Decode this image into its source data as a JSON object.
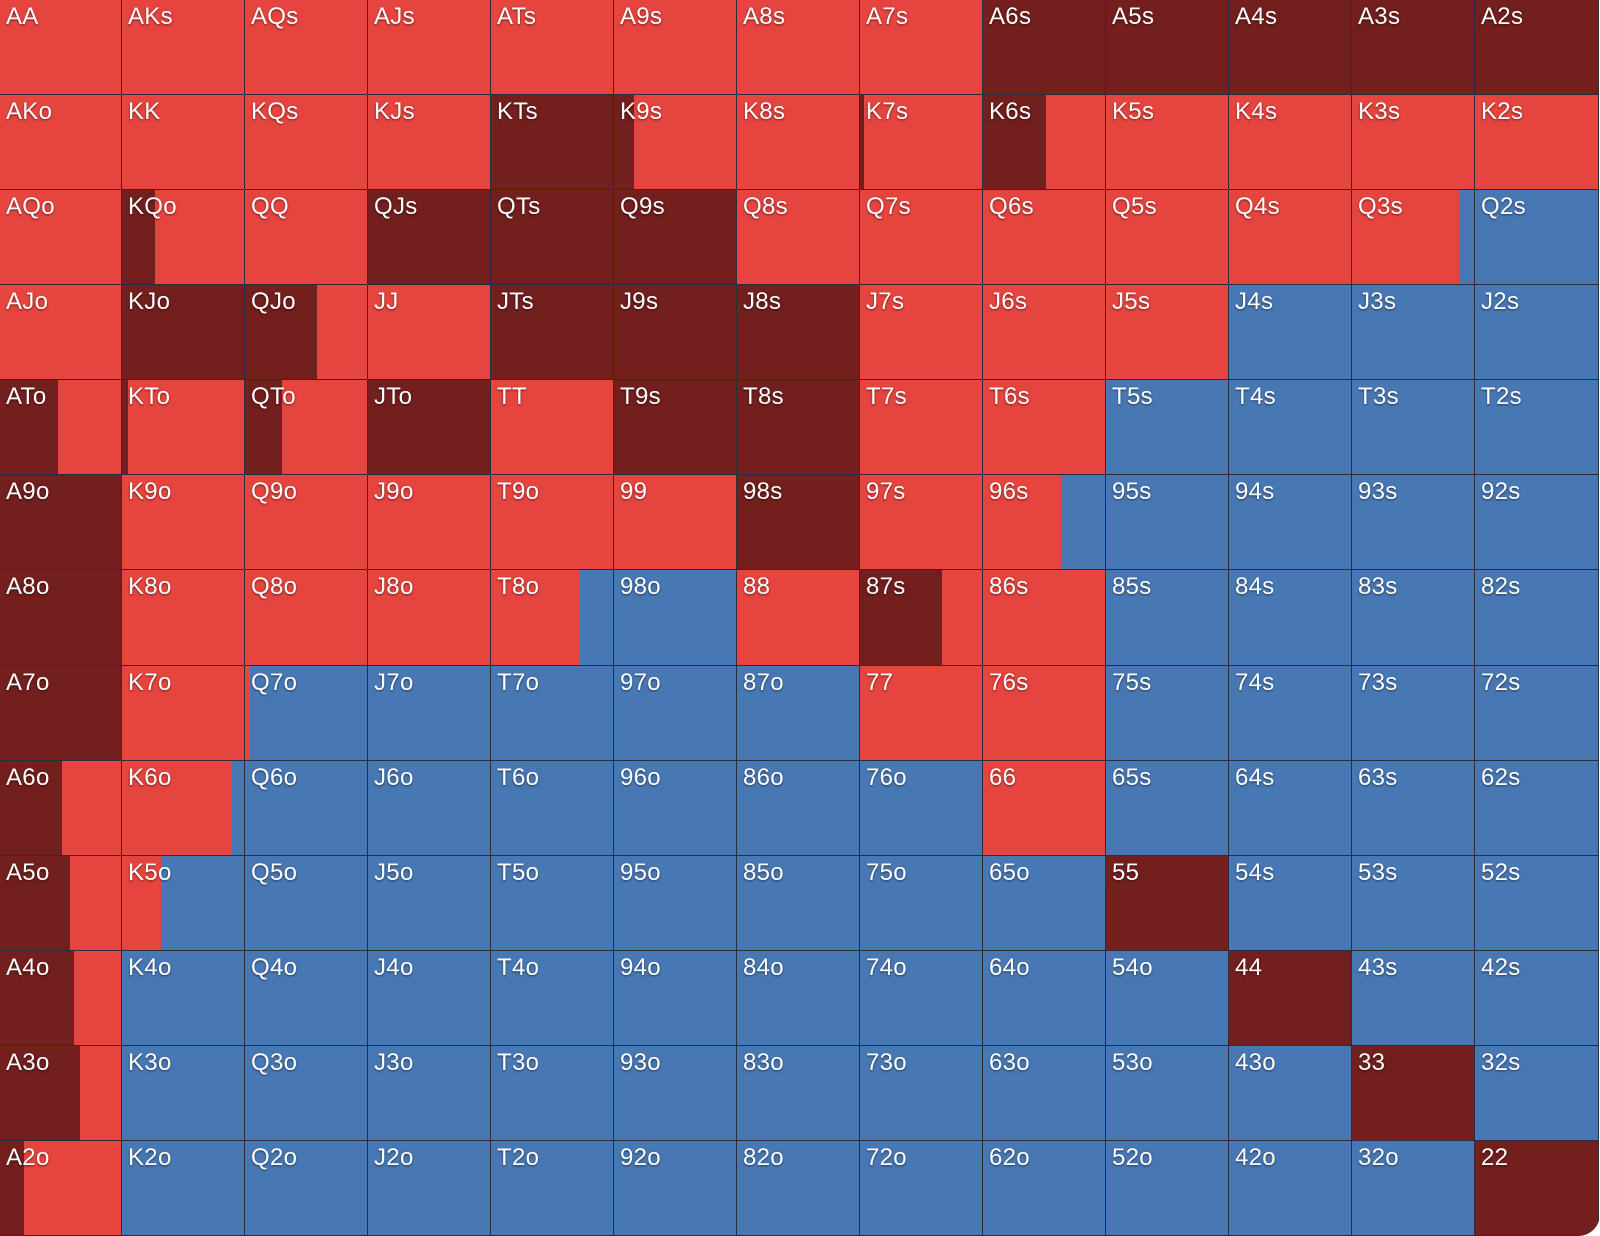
{
  "colors": {
    "raise": "#721f1e",
    "call": "#e6443e",
    "fold": "#4878b4"
  },
  "range_grid": {
    "rows": [
      [
        {
          "hand": "AA",
          "raise": 0,
          "call": 1
        },
        {
          "hand": "AKs",
          "raise": 0,
          "call": 1
        },
        {
          "hand": "AQs",
          "raise": 0,
          "call": 1
        },
        {
          "hand": "AJs",
          "raise": 0,
          "call": 1
        },
        {
          "hand": "ATs",
          "raise": 0,
          "call": 1
        },
        {
          "hand": "A9s",
          "raise": 0,
          "call": 1
        },
        {
          "hand": "A8s",
          "raise": 0,
          "call": 1
        },
        {
          "hand": "A7s",
          "raise": 0,
          "call": 1
        },
        {
          "hand": "A6s",
          "raise": 1,
          "call": 0
        },
        {
          "hand": "A5s",
          "raise": 1,
          "call": 0
        },
        {
          "hand": "A4s",
          "raise": 1,
          "call": 0
        },
        {
          "hand": "A3s",
          "raise": 1,
          "call": 0
        },
        {
          "hand": "A2s",
          "raise": 1,
          "call": 0
        }
      ],
      [
        {
          "hand": "AKo",
          "raise": 0,
          "call": 1
        },
        {
          "hand": "KK",
          "raise": 0,
          "call": 1
        },
        {
          "hand": "KQs",
          "raise": 0,
          "call": 1
        },
        {
          "hand": "KJs",
          "raise": 0,
          "call": 1
        },
        {
          "hand": "KTs",
          "raise": 1,
          "call": 0
        },
        {
          "hand": "K9s",
          "raise": 0.16,
          "call": 0.84
        },
        {
          "hand": "K8s",
          "raise": 0,
          "call": 1
        },
        {
          "hand": "K7s",
          "raise": 0.03,
          "call": 0.97
        },
        {
          "hand": "K6s",
          "raise": 0.52,
          "call": 0.48
        },
        {
          "hand": "K5s",
          "raise": 0,
          "call": 1
        },
        {
          "hand": "K4s",
          "raise": 0,
          "call": 1
        },
        {
          "hand": "K3s",
          "raise": 0,
          "call": 1
        },
        {
          "hand": "K2s",
          "raise": 0,
          "call": 1
        }
      ],
      [
        {
          "hand": "AQo",
          "raise": 0,
          "call": 1
        },
        {
          "hand": "KQo",
          "raise": 0.27,
          "call": 0.73
        },
        {
          "hand": "QQ",
          "raise": 0,
          "call": 1
        },
        {
          "hand": "QJs",
          "raise": 1,
          "call": 0
        },
        {
          "hand": "QTs",
          "raise": 1,
          "call": 0
        },
        {
          "hand": "Q9s",
          "raise": 1,
          "call": 0
        },
        {
          "hand": "Q8s",
          "raise": 0,
          "call": 1
        },
        {
          "hand": "Q7s",
          "raise": 0,
          "call": 1
        },
        {
          "hand": "Q6s",
          "raise": 0,
          "call": 1
        },
        {
          "hand": "Q5s",
          "raise": 0,
          "call": 1
        },
        {
          "hand": "Q4s",
          "raise": 0,
          "call": 1
        },
        {
          "hand": "Q3s",
          "raise": 0,
          "call": 0.88
        },
        {
          "hand": "Q2s",
          "raise": 0,
          "call": 0
        }
      ],
      [
        {
          "hand": "AJo",
          "raise": 0,
          "call": 1
        },
        {
          "hand": "KJo",
          "raise": 1,
          "call": 0
        },
        {
          "hand": "QJo",
          "raise": 0.59,
          "call": 0.41
        },
        {
          "hand": "JJ",
          "raise": 0,
          "call": 1
        },
        {
          "hand": "JTs",
          "raise": 1,
          "call": 0
        },
        {
          "hand": "J9s",
          "raise": 1,
          "call": 0
        },
        {
          "hand": "J8s",
          "raise": 1,
          "call": 0
        },
        {
          "hand": "J7s",
          "raise": 0,
          "call": 1
        },
        {
          "hand": "J6s",
          "raise": 0,
          "call": 1
        },
        {
          "hand": "J5s",
          "raise": 0,
          "call": 1
        },
        {
          "hand": "J4s",
          "raise": 0,
          "call": 0
        },
        {
          "hand": "J3s",
          "raise": 0,
          "call": 0
        },
        {
          "hand": "J2s",
          "raise": 0,
          "call": 0
        }
      ],
      [
        {
          "hand": "ATo",
          "raise": 0.48,
          "call": 0.52
        },
        {
          "hand": "KTo",
          "raise": 0.05,
          "call": 0.95
        },
        {
          "hand": "QTo",
          "raise": 0.3,
          "call": 0.7
        },
        {
          "hand": "JTo",
          "raise": 1,
          "call": 0
        },
        {
          "hand": "TT",
          "raise": 0,
          "call": 1
        },
        {
          "hand": "T9s",
          "raise": 1,
          "call": 0
        },
        {
          "hand": "T8s",
          "raise": 1,
          "call": 0
        },
        {
          "hand": "T7s",
          "raise": 0,
          "call": 1
        },
        {
          "hand": "T6s",
          "raise": 0,
          "call": 1
        },
        {
          "hand": "T5s",
          "raise": 0,
          "call": 0
        },
        {
          "hand": "T4s",
          "raise": 0,
          "call": 0
        },
        {
          "hand": "T3s",
          "raise": 0,
          "call": 0
        },
        {
          "hand": "T2s",
          "raise": 0,
          "call": 0
        }
      ],
      [
        {
          "hand": "A9o",
          "raise": 1,
          "call": 0
        },
        {
          "hand": "K9o",
          "raise": 0,
          "call": 1
        },
        {
          "hand": "Q9o",
          "raise": 0,
          "call": 1
        },
        {
          "hand": "J9o",
          "raise": 0,
          "call": 1
        },
        {
          "hand": "T9o",
          "raise": 0,
          "call": 1
        },
        {
          "hand": "99",
          "raise": 0,
          "call": 1
        },
        {
          "hand": "98s",
          "raise": 1,
          "call": 0
        },
        {
          "hand": "97s",
          "raise": 0,
          "call": 1
        },
        {
          "hand": "96s",
          "raise": 0,
          "call": 0.64
        },
        {
          "hand": "95s",
          "raise": 0,
          "call": 0
        },
        {
          "hand": "94s",
          "raise": 0,
          "call": 0
        },
        {
          "hand": "93s",
          "raise": 0,
          "call": 0
        },
        {
          "hand": "92s",
          "raise": 0,
          "call": 0
        }
      ],
      [
        {
          "hand": "A8o",
          "raise": 1,
          "call": 0
        },
        {
          "hand": "K8o",
          "raise": 0,
          "call": 1
        },
        {
          "hand": "Q8o",
          "raise": 0,
          "call": 1
        },
        {
          "hand": "J8o",
          "raise": 0,
          "call": 1
        },
        {
          "hand": "T8o",
          "raise": 0,
          "call": 0.73
        },
        {
          "hand": "98o",
          "raise": 0,
          "call": 0
        },
        {
          "hand": "88",
          "raise": 0,
          "call": 1
        },
        {
          "hand": "87s",
          "raise": 0.67,
          "call": 0.33
        },
        {
          "hand": "86s",
          "raise": 0,
          "call": 1
        },
        {
          "hand": "85s",
          "raise": 0,
          "call": 0
        },
        {
          "hand": "84s",
          "raise": 0,
          "call": 0
        },
        {
          "hand": "83s",
          "raise": 0,
          "call": 0
        },
        {
          "hand": "82s",
          "raise": 0,
          "call": 0
        }
      ],
      [
        {
          "hand": "A7o",
          "raise": 1,
          "call": 0
        },
        {
          "hand": "K7o",
          "raise": 0,
          "call": 1
        },
        {
          "hand": "Q7o",
          "raise": 0,
          "call": 0.04
        },
        {
          "hand": "J7o",
          "raise": 0,
          "call": 0
        },
        {
          "hand": "T7o",
          "raise": 0,
          "call": 0
        },
        {
          "hand": "97o",
          "raise": 0,
          "call": 0
        },
        {
          "hand": "87o",
          "raise": 0,
          "call": 0
        },
        {
          "hand": "77",
          "raise": 0,
          "call": 1
        },
        {
          "hand": "76s",
          "raise": 0,
          "call": 1
        },
        {
          "hand": "75s",
          "raise": 0,
          "call": 0
        },
        {
          "hand": "74s",
          "raise": 0,
          "call": 0
        },
        {
          "hand": "73s",
          "raise": 0,
          "call": 0
        },
        {
          "hand": "72s",
          "raise": 0,
          "call": 0
        }
      ],
      [
        {
          "hand": "A6o",
          "raise": 0.51,
          "call": 0.49
        },
        {
          "hand": "K6o",
          "raise": 0,
          "call": 0.9
        },
        {
          "hand": "Q6o",
          "raise": 0,
          "call": 0
        },
        {
          "hand": "J6o",
          "raise": 0,
          "call": 0
        },
        {
          "hand": "T6o",
          "raise": 0,
          "call": 0
        },
        {
          "hand": "96o",
          "raise": 0,
          "call": 0
        },
        {
          "hand": "86o",
          "raise": 0,
          "call": 0
        },
        {
          "hand": "76o",
          "raise": 0,
          "call": 0
        },
        {
          "hand": "66",
          "raise": 0,
          "call": 1
        },
        {
          "hand": "65s",
          "raise": 0,
          "call": 0
        },
        {
          "hand": "64s",
          "raise": 0,
          "call": 0
        },
        {
          "hand": "63s",
          "raise": 0,
          "call": 0
        },
        {
          "hand": "62s",
          "raise": 0,
          "call": 0
        }
      ],
      [
        {
          "hand": "A5o",
          "raise": 0.58,
          "call": 0.42
        },
        {
          "hand": "K5o",
          "raise": 0,
          "call": 0.32
        },
        {
          "hand": "Q5o",
          "raise": 0,
          "call": 0
        },
        {
          "hand": "J5o",
          "raise": 0,
          "call": 0
        },
        {
          "hand": "T5o",
          "raise": 0,
          "call": 0
        },
        {
          "hand": "95o",
          "raise": 0,
          "call": 0
        },
        {
          "hand": "85o",
          "raise": 0,
          "call": 0
        },
        {
          "hand": "75o",
          "raise": 0,
          "call": 0
        },
        {
          "hand": "65o",
          "raise": 0,
          "call": 0
        },
        {
          "hand": "55",
          "raise": 1,
          "call": 0
        },
        {
          "hand": "54s",
          "raise": 0,
          "call": 0
        },
        {
          "hand": "53s",
          "raise": 0,
          "call": 0
        },
        {
          "hand": "52s",
          "raise": 0,
          "call": 0
        }
      ],
      [
        {
          "hand": "A4o",
          "raise": 0.61,
          "call": 0.39
        },
        {
          "hand": "K4o",
          "raise": 0,
          "call": 0
        },
        {
          "hand": "Q4o",
          "raise": 0,
          "call": 0
        },
        {
          "hand": "J4o",
          "raise": 0,
          "call": 0
        },
        {
          "hand": "T4o",
          "raise": 0,
          "call": 0
        },
        {
          "hand": "94o",
          "raise": 0,
          "call": 0
        },
        {
          "hand": "84o",
          "raise": 0,
          "call": 0
        },
        {
          "hand": "74o",
          "raise": 0,
          "call": 0
        },
        {
          "hand": "64o",
          "raise": 0,
          "call": 0
        },
        {
          "hand": "54o",
          "raise": 0,
          "call": 0
        },
        {
          "hand": "44",
          "raise": 1,
          "call": 0
        },
        {
          "hand": "43s",
          "raise": 0,
          "call": 0
        },
        {
          "hand": "42s",
          "raise": 0,
          "call": 0
        }
      ],
      [
        {
          "hand": "A3o",
          "raise": 0.66,
          "call": 0.34
        },
        {
          "hand": "K3o",
          "raise": 0,
          "call": 0
        },
        {
          "hand": "Q3o",
          "raise": 0,
          "call": 0
        },
        {
          "hand": "J3o",
          "raise": 0,
          "call": 0
        },
        {
          "hand": "T3o",
          "raise": 0,
          "call": 0
        },
        {
          "hand": "93o",
          "raise": 0,
          "call": 0
        },
        {
          "hand": "83o",
          "raise": 0,
          "call": 0
        },
        {
          "hand": "73o",
          "raise": 0,
          "call": 0
        },
        {
          "hand": "63o",
          "raise": 0,
          "call": 0
        },
        {
          "hand": "53o",
          "raise": 0,
          "call": 0
        },
        {
          "hand": "43o",
          "raise": 0,
          "call": 0
        },
        {
          "hand": "33",
          "raise": 1,
          "call": 0
        },
        {
          "hand": "32s",
          "raise": 0,
          "call": 0
        }
      ],
      [
        {
          "hand": "A2o",
          "raise": 0.2,
          "call": 0.8
        },
        {
          "hand": "K2o",
          "raise": 0,
          "call": 0
        },
        {
          "hand": "Q2o",
          "raise": 0,
          "call": 0
        },
        {
          "hand": "J2o",
          "raise": 0,
          "call": 0
        },
        {
          "hand": "T2o",
          "raise": 0,
          "call": 0
        },
        {
          "hand": "92o",
          "raise": 0,
          "call": 0
        },
        {
          "hand": "82o",
          "raise": 0,
          "call": 0
        },
        {
          "hand": "72o",
          "raise": 0,
          "call": 0
        },
        {
          "hand": "62o",
          "raise": 0,
          "call": 0
        },
        {
          "hand": "52o",
          "raise": 0,
          "call": 0
        },
        {
          "hand": "42o",
          "raise": 0,
          "call": 0
        },
        {
          "hand": "32o",
          "raise": 0,
          "call": 0
        },
        {
          "hand": "22",
          "raise": 1,
          "call": 0
        }
      ]
    ]
  }
}
